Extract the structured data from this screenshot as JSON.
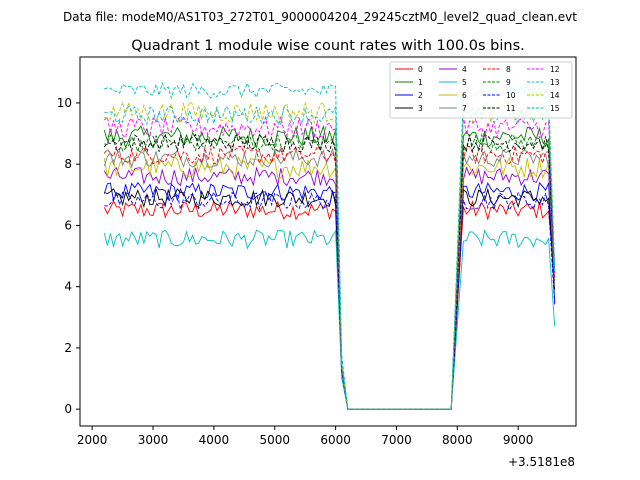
{
  "chart_data": {
    "type": "line",
    "suptitle": "Data file: modeM0/AS1T03_272T01_9000004204_29245cztM0_level2_quad_clean.evt",
    "title": "Quadrant 1 module wise count rates with 100.0s bins.",
    "xlabel": "",
    "ylabel": "",
    "x_offset_label": "+3.5181e8",
    "xlim": [
      1800,
      9950
    ],
    "ylim": [
      -0.55,
      11.5
    ],
    "x_ticks": [
      2000,
      3000,
      4000,
      5000,
      6000,
      7000,
      8000,
      9000
    ],
    "x_tick_labels": [
      "2000",
      "3000",
      "4000",
      "5000",
      "6000",
      "7000",
      "8000",
      "9000"
    ],
    "y_ticks": [
      0,
      2,
      4,
      6,
      8,
      10
    ],
    "y_tick_labels": [
      "0",
      "2",
      "4",
      "6",
      "8",
      "10"
    ],
    "legend_position": "top-right",
    "segments": [
      {
        "start": 2200,
        "end": 6000
      },
      {
        "start": 8100,
        "end": 9500
      }
    ],
    "gap": {
      "drop_points": [
        6100,
        6200
      ],
      "zero_from": 6200,
      "zero_to": 7900,
      "rise_at": 8000
    },
    "end_points": {
      "x": 9600
    },
    "series": [
      {
        "name": "0",
        "color": "#ff0000",
        "dash": false,
        "base": 6.5,
        "amp": 0.3,
        "tail": 4.3
      },
      {
        "name": "1",
        "color": "#008000",
        "dash": false,
        "base": 8.9,
        "amp": 0.35,
        "tail": 4.0
      },
      {
        "name": "2",
        "color": "#0000ff",
        "dash": false,
        "base": 7.1,
        "amp": 0.3,
        "tail": 3.5
      },
      {
        "name": "3",
        "color": "#000000",
        "dash": false,
        "base": 6.9,
        "amp": 0.3,
        "tail": 3.9
      },
      {
        "name": "4",
        "color": "#9400d3",
        "dash": false,
        "base": 7.6,
        "amp": 0.3,
        "tail": 4.1
      },
      {
        "name": "5",
        "color": "#00bfbf",
        "dash": false,
        "base": 5.55,
        "amp": 0.3,
        "tail": 2.7
      },
      {
        "name": "6",
        "color": "#bfbf00",
        "dash": false,
        "base": 7.9,
        "amp": 0.35,
        "tail": 4.2
      },
      {
        "name": "7",
        "color": "#808080",
        "dash": false,
        "base": 8.2,
        "amp": 0.3,
        "tail": 4.0
      },
      {
        "name": "8",
        "color": "#ff0000",
        "dash": true,
        "base": 8.3,
        "amp": 0.3,
        "tail": 4.4
      },
      {
        "name": "9",
        "color": "#008000",
        "dash": true,
        "base": 8.7,
        "amp": 0.3,
        "tail": 4.2
      },
      {
        "name": "10",
        "color": "#0000ff",
        "dash": true,
        "base": 6.8,
        "amp": 0.3,
        "tail": 3.4
      },
      {
        "name": "11",
        "color": "#000000",
        "dash": true,
        "base": 8.7,
        "amp": 0.3,
        "tail": 4.5
      },
      {
        "name": "12",
        "color": "#ff00ff",
        "dash": true,
        "base": 9.2,
        "amp": 0.35,
        "tail": 4.3
      },
      {
        "name": "13",
        "color": "#00bfbf",
        "dash": true,
        "base": 10.4,
        "amp": 0.25,
        "tail": 4.6
      },
      {
        "name": "14",
        "color": "#bfbf00",
        "dash": true,
        "base": 9.7,
        "amp": 0.35,
        "tail": 4.4
      },
      {
        "name": "15",
        "color": "#00bfbf",
        "dash": true,
        "base": 9.6,
        "amp": 0.3,
        "tail": 4.5
      }
    ]
  }
}
